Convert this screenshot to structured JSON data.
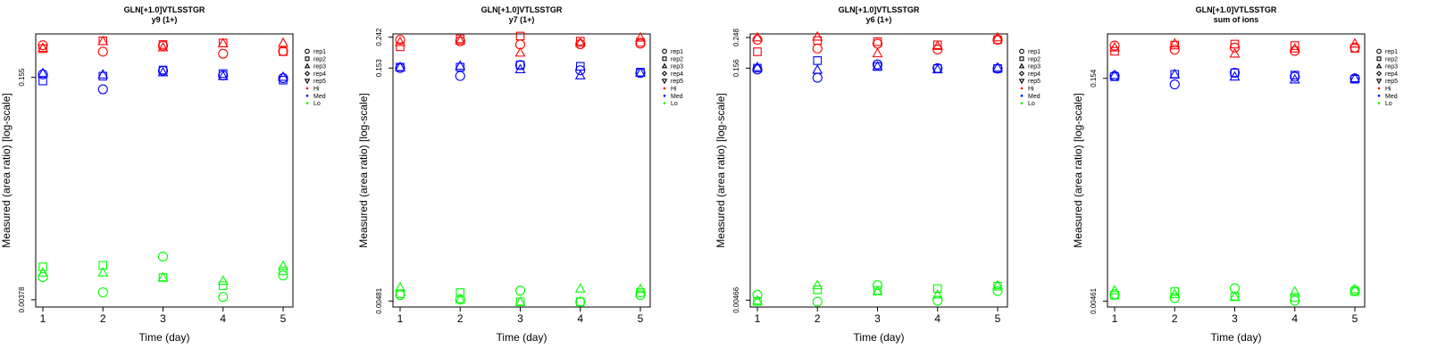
{
  "chart_data": [
    {
      "type": "scatter",
      "title": "GLN[+1.0]VTLSSTGR",
      "subtitle": "y9 (1+)",
      "xlabel": "Time (day)",
      "ylabel": "Measured (area ratio) [log-scale]",
      "x_ticks": [
        "1",
        "2",
        "3",
        "4",
        "5"
      ],
      "y_ticks": [
        {
          "value": 0.155,
          "label": "0.155"
        },
        {
          "value": 0.00378,
          "label": "0.00378"
        }
      ],
      "ylim": [
        0.00335,
        0.32
      ],
      "y_scale": "log",
      "legend_position": "right",
      "legend_shapes": [
        {
          "label": "rep1",
          "symbol": "circle"
        },
        {
          "label": "rep2",
          "symbol": "square"
        },
        {
          "label": "rep3",
          "symbol": "triangle"
        },
        {
          "label": "rep4",
          "symbol": "diamond"
        },
        {
          "label": "rep5",
          "symbol": "triangle-down"
        }
      ],
      "legend_groups": [
        {
          "label": "Hi",
          "color": "#ff0000"
        },
        {
          "label": "Med",
          "color": "#0000ff"
        },
        {
          "label": "Lo",
          "color": "#00ff00"
        }
      ],
      "series": [
        {
          "group": "Hi",
          "shape": "circle",
          "x": [
            1,
            2,
            3,
            4,
            5
          ],
          "y": [
            0.265,
            0.238,
            0.263,
            0.23,
            0.24
          ]
        },
        {
          "group": "Hi",
          "shape": "square",
          "x": [
            1,
            2,
            3,
            4,
            5
          ],
          "y": [
            0.25,
            0.285,
            0.268,
            0.275,
            0.238
          ]
        },
        {
          "group": "Hi",
          "shape": "triangle",
          "x": [
            1,
            2,
            3,
            4,
            5
          ],
          "y": [
            0.253,
            0.283,
            0.255,
            0.273,
            0.275
          ]
        },
        {
          "group": "Med",
          "shape": "circle",
          "x": [
            1,
            2,
            3,
            4,
            5
          ],
          "y": [
            0.163,
            0.127,
            0.173,
            0.16,
            0.153
          ]
        },
        {
          "group": "Med",
          "shape": "square",
          "x": [
            1,
            2,
            3,
            4,
            5
          ],
          "y": [
            0.146,
            0.158,
            0.175,
            0.165,
            0.148
          ]
        },
        {
          "group": "Med",
          "shape": "triangle",
          "x": [
            1,
            2,
            3,
            4,
            5
          ],
          "y": [
            0.166,
            0.162,
            0.168,
            0.158,
            0.156
          ]
        },
        {
          "group": "Lo",
          "shape": "circle",
          "x": [
            1,
            2,
            3,
            4,
            5
          ],
          "y": [
            0.00552,
            0.00428,
            0.00778,
            0.00396,
            0.00568
          ]
        },
        {
          "group": "Lo",
          "shape": "square",
          "x": [
            1,
            2,
            3,
            4,
            5
          ],
          "y": [
            0.00655,
            0.00672,
            0.00548,
            0.00478,
            0.00612
          ]
        },
        {
          "group": "Lo",
          "shape": "triangle",
          "x": [
            1,
            2,
            3,
            4,
            5
          ],
          "y": [
            0.00595,
            0.00595,
            0.00548,
            0.00518,
            0.00665
          ]
        }
      ]
    },
    {
      "type": "scatter",
      "title": "GLN[+1.0]VTLSSTGR",
      "subtitle": "y7 (1+)",
      "xlabel": "Time (day)",
      "ylabel": "Measured (area ratio) [log-scale]",
      "x_ticks": [
        "1",
        "2",
        "3",
        "4",
        "5"
      ],
      "y_ticks": [
        {
          "value": 0.242,
          "label": "0.242"
        },
        {
          "value": 0.153,
          "label": "0.153"
        },
        {
          "value": 0.00481,
          "label": "0.00481"
        }
      ],
      "ylim": [
        0.0044,
        0.254
      ],
      "y_scale": "log",
      "legend_position": "right",
      "legend_shapes": [
        {
          "label": "rep1",
          "symbol": "circle"
        },
        {
          "label": "rep2",
          "symbol": "square"
        },
        {
          "label": "rep3",
          "symbol": "triangle"
        },
        {
          "label": "rep4",
          "symbol": "diamond"
        },
        {
          "label": "rep5",
          "symbol": "triangle-down"
        }
      ],
      "legend_groups": [
        {
          "label": "Hi",
          "color": "#ff0000"
        },
        {
          "label": "Med",
          "color": "#0000ff"
        },
        {
          "label": "Lo",
          "color": "#00ff00"
        }
      ],
      "series": [
        {
          "group": "Hi",
          "shape": "circle",
          "x": [
            1,
            2,
            3,
            4,
            5
          ],
          "y": [
            0.233,
            0.228,
            0.217,
            0.218,
            0.22
          ]
        },
        {
          "group": "Hi",
          "shape": "square",
          "x": [
            1,
            2,
            3,
            4,
            5
          ],
          "y": [
            0.21,
            0.236,
            0.246,
            0.228,
            0.224
          ]
        },
        {
          "group": "Hi",
          "shape": "triangle",
          "x": [
            1,
            2,
            3,
            4,
            5
          ],
          "y": [
            0.225,
            0.23,
            0.192,
            0.222,
            0.24
          ]
        },
        {
          "group": "Med",
          "shape": "circle",
          "x": [
            1,
            2,
            3,
            4,
            5
          ],
          "y": [
            0.153,
            0.136,
            0.16,
            0.148,
            0.142
          ]
        },
        {
          "group": "Med",
          "shape": "square",
          "x": [
            1,
            2,
            3,
            4,
            5
          ],
          "y": [
            0.155,
            0.155,
            0.16,
            0.157,
            0.144
          ]
        },
        {
          "group": "Med",
          "shape": "triangle",
          "x": [
            1,
            2,
            3,
            4,
            5
          ],
          "y": [
            0.155,
            0.158,
            0.15,
            0.137,
            0.142
          ]
        },
        {
          "group": "Lo",
          "shape": "circle",
          "x": [
            1,
            2,
            3,
            4,
            5
          ],
          "y": [
            0.00526,
            0.00492,
            0.00562,
            0.00475,
            0.00525
          ]
        },
        {
          "group": "Lo",
          "shape": "square",
          "x": [
            1,
            2,
            3,
            4,
            5
          ],
          "y": [
            0.00536,
            0.00545,
            0.00475,
            0.00475,
            0.00545
          ]
        },
        {
          "group": "Lo",
          "shape": "triangle",
          "x": [
            1,
            2,
            3,
            4,
            5
          ],
          "y": [
            0.00588,
            0.00494,
            0.00475,
            0.00578,
            0.00574
          ]
        }
      ]
    },
    {
      "type": "scatter",
      "title": "GLN[+1.0]VTLSSTGR",
      "subtitle": "y6 (1+)",
      "xlabel": "Time (day)",
      "ylabel": "Measured (area ratio) [log-scale]",
      "x_ticks": [
        "1",
        "2",
        "3",
        "4",
        "5"
      ],
      "y_ticks": [
        {
          "value": 0.248,
          "label": "0.248"
        },
        {
          "value": 0.156,
          "label": "0.156"
        },
        {
          "value": 0.00466,
          "label": "0.00466"
        }
      ],
      "ylim": [
        0.0042,
        0.262
      ],
      "y_scale": "log",
      "legend_position": "right",
      "legend_shapes": [
        {
          "label": "rep1",
          "symbol": "circle"
        },
        {
          "label": "rep2",
          "symbol": "square"
        },
        {
          "label": "rep3",
          "symbol": "triangle"
        },
        {
          "label": "rep4",
          "symbol": "diamond"
        },
        {
          "label": "rep5",
          "symbol": "triangle-down"
        }
      ],
      "legend_groups": [
        {
          "label": "Hi",
          "color": "#ff0000"
        },
        {
          "label": "Med",
          "color": "#0000ff"
        },
        {
          "label": "Lo",
          "color": "#00ff00"
        }
      ],
      "series": [
        {
          "group": "Hi",
          "shape": "circle",
          "x": [
            1,
            2,
            3,
            4,
            5
          ],
          "y": [
            0.24,
            0.21,
            0.226,
            0.207,
            0.24
          ]
        },
        {
          "group": "Hi",
          "shape": "square",
          "x": [
            1,
            2,
            3,
            4,
            5
          ],
          "y": [
            0.2,
            0.237,
            0.233,
            0.222,
            0.24
          ]
        },
        {
          "group": "Hi",
          "shape": "triangle",
          "x": [
            1,
            2,
            3,
            4,
            5
          ],
          "y": [
            0.248,
            0.251,
            0.195,
            0.218,
            0.248
          ]
        },
        {
          "group": "Med",
          "shape": "circle",
          "x": [
            1,
            2,
            3,
            4,
            5
          ],
          "y": [
            0.153,
            0.135,
            0.165,
            0.156,
            0.155
          ]
        },
        {
          "group": "Med",
          "shape": "square",
          "x": [
            1,
            2,
            3,
            4,
            5
          ],
          "y": [
            0.156,
            0.175,
            0.16,
            0.155,
            0.155
          ]
        },
        {
          "group": "Med",
          "shape": "triangle",
          "x": [
            1,
            2,
            3,
            4,
            5
          ],
          "y": [
            0.158,
            0.152,
            0.16,
            0.153,
            0.157
          ]
        },
        {
          "group": "Lo",
          "shape": "circle",
          "x": [
            1,
            2,
            3,
            4,
            5
          ],
          "y": [
            0.00505,
            0.00455,
            0.00584,
            0.00462,
            0.00535
          ]
        },
        {
          "group": "Lo",
          "shape": "square",
          "x": [
            1,
            2,
            3,
            4,
            5
          ],
          "y": [
            0.00457,
            0.00545,
            0.0054,
            0.00555,
            0.00575
          ]
        },
        {
          "group": "Lo",
          "shape": "triangle",
          "x": [
            1,
            2,
            3,
            4,
            5
          ],
          "y": [
            0.00462,
            0.00584,
            0.00532,
            0.00506,
            0.00584
          ]
        }
      ]
    },
    {
      "type": "scatter",
      "title": "GLN[+1.0]VTLSSTGR",
      "subtitle": "sum of ions",
      "xlabel": "Time (day)",
      "ylabel": "Measured (area ratio) [log-scale]",
      "x_ticks": [
        "1",
        "2",
        "3",
        "4",
        "5"
      ],
      "y_ticks": [
        {
          "value": 0.154,
          "label": "0.154"
        },
        {
          "value": 0.00461,
          "label": "0.00461"
        }
      ],
      "ylim": [
        0.0042,
        0.31
      ],
      "y_scale": "log",
      "legend_position": "right",
      "legend_shapes": [
        {
          "label": "rep1",
          "symbol": "circle"
        },
        {
          "label": "rep2",
          "symbol": "square"
        },
        {
          "label": "rep3",
          "symbol": "triangle"
        },
        {
          "label": "rep4",
          "symbol": "diamond"
        },
        {
          "label": "rep5",
          "symbol": "triangle-down"
        }
      ],
      "legend_groups": [
        {
          "label": "Hi",
          "color": "#ff0000"
        },
        {
          "label": "Med",
          "color": "#0000ff"
        },
        {
          "label": "Lo",
          "color": "#00ff00"
        }
      ],
      "series": [
        {
          "group": "Hi",
          "shape": "circle",
          "x": [
            1,
            2,
            3,
            4,
            5
          ],
          "y": [
            0.258,
            0.242,
            0.25,
            0.237,
            0.25
          ]
        },
        {
          "group": "Hi",
          "shape": "square",
          "x": [
            1,
            2,
            3,
            4,
            5
          ],
          "y": [
            0.236,
            0.26,
            0.264,
            0.258,
            0.247
          ]
        },
        {
          "group": "Hi",
          "shape": "triangle",
          "x": [
            1,
            2,
            3,
            4,
            5
          ],
          "y": [
            0.25,
            0.266,
            0.227,
            0.246,
            0.266
          ]
        },
        {
          "group": "Med",
          "shape": "circle",
          "x": [
            1,
            2,
            3,
            4,
            5
          ],
          "y": [
            0.16,
            0.14,
            0.168,
            0.158,
            0.154
          ]
        },
        {
          "group": "Med",
          "shape": "square",
          "x": [
            1,
            2,
            3,
            4,
            5
          ],
          "y": [
            0.158,
            0.164,
            0.168,
            0.162,
            0.152
          ]
        },
        {
          "group": "Med",
          "shape": "triangle",
          "x": [
            1,
            2,
            3,
            4,
            5
          ],
          "y": [
            0.162,
            0.164,
            0.158,
            0.151,
            0.154
          ]
        },
        {
          "group": "Lo",
          "shape": "circle",
          "x": [
            1,
            2,
            3,
            4,
            5
          ],
          "y": [
            0.00514,
            0.00484,
            0.00565,
            0.00464,
            0.00545
          ]
        },
        {
          "group": "Lo",
          "shape": "square",
          "x": [
            1,
            2,
            3,
            4,
            5
          ],
          "y": [
            0.00505,
            0.00535,
            0.00494,
            0.00489,
            0.00535
          ]
        },
        {
          "group": "Lo",
          "shape": "triangle",
          "x": [
            1,
            2,
            3,
            4,
            5
          ],
          "y": [
            0.00545,
            0.00514,
            0.00494,
            0.00535,
            0.00555
          ]
        }
      ]
    }
  ]
}
